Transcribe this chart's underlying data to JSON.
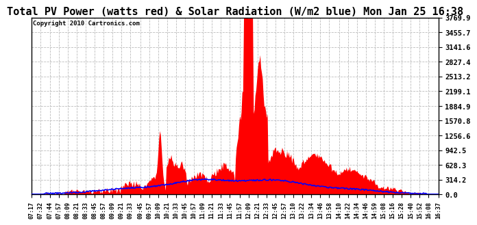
{
  "title": "Total PV Power (watts red) & Solar Radiation (W/m2 blue) Mon Jan 25 16:38",
  "copyright_text": "Copyright 2010 Cartronics.com",
  "y_tick_labels": [
    "0.0",
    "314.2",
    "628.3",
    "942.5",
    "1256.6",
    "1570.8",
    "1884.9",
    "2199.1",
    "2513.2",
    "2827.4",
    "3141.6",
    "3455.7",
    "3769.9"
  ],
  "y_ticks_vals": [
    0.0,
    314.2,
    628.3,
    942.5,
    1256.6,
    1570.8,
    1884.9,
    2199.1,
    2513.2,
    2827.4,
    3141.6,
    3455.7,
    3769.9
  ],
  "y_max": 3769.9,
  "y_min": 0.0,
  "pv_color": "#FF0000",
  "solar_color": "#0000FF",
  "background_color": "#FFFFFF",
  "grid_color": "#BBBBBB",
  "title_fontsize": 11,
  "copyright_fontsize": 6.5,
  "x_tick_labels": [
    "07:17",
    "07:32",
    "07:44",
    "07:57",
    "08:09",
    "08:21",
    "08:33",
    "08:45",
    "08:57",
    "09:09",
    "09:21",
    "09:33",
    "09:45",
    "09:57",
    "10:09",
    "10:21",
    "10:33",
    "10:45",
    "10:57",
    "11:09",
    "11:21",
    "11:33",
    "11:45",
    "11:57",
    "12:09",
    "12:21",
    "12:33",
    "12:45",
    "12:57",
    "13:10",
    "13:22",
    "13:34",
    "13:46",
    "13:58",
    "14:10",
    "14:22",
    "14:34",
    "14:46",
    "14:59",
    "15:08",
    "15:16",
    "15:28",
    "15:40",
    "15:52",
    "16:08",
    "16:37"
  ]
}
